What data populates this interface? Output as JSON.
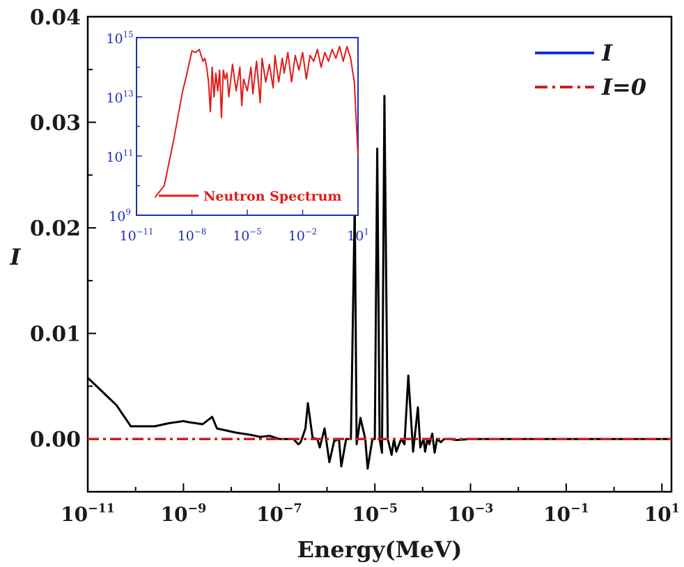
{
  "chart_data": [
    {
      "type": "line",
      "title": "",
      "xlabel": "Energy(MeV)",
      "ylabel": "I",
      "xscale": "log",
      "xlim_exp": [
        -11,
        1.2
      ],
      "ylim": [
        -0.005,
        0.04
      ],
      "x_tick_exponents": [
        -11,
        -9,
        -7,
        -5,
        -3,
        -1,
        1
      ],
      "y_ticks": [
        "0.00",
        "0.01",
        "0.02",
        "0.03",
        "0.04"
      ],
      "y_tick_values": [
        0.0,
        0.01,
        0.02,
        0.03,
        0.04
      ],
      "legend": {
        "position": "top-right",
        "entries": [
          {
            "label": "I",
            "color": "#1a2ee0",
            "style": "solid"
          },
          {
            "label": "I=0",
            "color": "#cc1f1f",
            "style": "dashdot"
          }
        ]
      },
      "series": [
        {
          "name": "I",
          "color": "#000000",
          "x_exp": [
            -11,
            -10.7,
            -10.4,
            -10.1,
            -9.9,
            -9.6,
            -9.3,
            -9.0,
            -8.9,
            -8.6,
            -8.4,
            -8.3,
            -8.1,
            -7.9,
            -7.6,
            -7.4,
            -7.2,
            -7.0,
            -6.8,
            -6.7,
            -6.6,
            -6.55,
            -6.45,
            -6.4,
            -6.3,
            -6.2,
            -6.15,
            -6.05,
            -5.95,
            -5.85,
            -5.75,
            -5.7,
            -5.6,
            -5.5,
            -5.42,
            -5.38,
            -5.3,
            -5.2,
            -5.15,
            -5.05,
            -5.0,
            -4.95,
            -4.9,
            -4.85,
            -4.8,
            -4.73,
            -4.65,
            -4.6,
            -4.55,
            -4.45,
            -4.38,
            -4.3,
            -4.2,
            -4.1,
            -4.05,
            -3.98,
            -3.95,
            -3.9,
            -3.86,
            -3.8,
            -3.75,
            -3.7,
            -3.62,
            -3.55,
            -3.45,
            -3.3,
            -3.0,
            -2.0,
            0.0,
            1.2
          ],
          "values": [
            0.0058,
            0.0045,
            0.0032,
            0.0012,
            0.0012,
            0.0012,
            0.0015,
            0.0017,
            0.0016,
            0.0014,
            0.0021,
            0.001,
            0.0008,
            0.0006,
            0.0004,
            0.0002,
            0.0003,
            0.0,
            0.0,
            0.0,
            -0.0005,
            -0.0003,
            0.001,
            0.0034,
            0.0001,
            0.0,
            -0.0008,
            0.001,
            -0.0022,
            -0.0002,
            0.0,
            -0.0026,
            0.0,
            0.0,
            0.0222,
            -0.0005,
            0.002,
            0.0,
            -0.0028,
            0.0,
            0.0,
            0.0275,
            0.0,
            -0.0013,
            0.0325,
            0.0,
            -0.0015,
            0.0,
            -0.0012,
            0.0,
            -0.0005,
            0.006,
            -0.0012,
            0.003,
            -0.0008,
            0.0,
            -0.0012,
            0.0,
            -0.0005,
            0.0005,
            -0.0013,
            0.0,
            -0.0003,
            0.0,
            0.0,
            -0.0001,
            0.0,
            0.0,
            0.0,
            0.0
          ]
        },
        {
          "name": "I=0",
          "color": "#cc1f1f",
          "x_exp": [
            -11,
            1.2
          ],
          "values": [
            0,
            0
          ]
        }
      ]
    },
    {
      "type": "line",
      "title": "",
      "legend": {
        "position": "bottom-right",
        "entries": [
          {
            "label": "Neutron Spectrum",
            "color": "#e01b1b"
          }
        ]
      },
      "xscale": "log",
      "yscale": "log",
      "xlim_exp": [
        -11,
        1
      ],
      "ylim_exp": [
        9,
        15
      ],
      "x_tick_exponents": [
        -11,
        -8,
        -5,
        -2,
        1
      ],
      "y_tick_exponents": [
        9,
        11,
        13,
        15
      ],
      "series": [
        {
          "name": "Neutron Spectrum",
          "color": "#e01b1b",
          "x_exp": [
            -10.0,
            -9.5,
            -9.0,
            -8.5,
            -8.3,
            -8.0,
            -7.8,
            -7.6,
            -7.4,
            -7.3,
            -7.2,
            -7.1,
            -7.0,
            -6.9,
            -6.8,
            -6.7,
            -6.6,
            -6.5,
            -6.4,
            -6.3,
            -6.2,
            -6.1,
            -6.0,
            -5.8,
            -5.6,
            -5.4,
            -5.3,
            -5.2,
            -5.0,
            -4.8,
            -4.7,
            -4.5,
            -4.3,
            -4.2,
            -4.0,
            -3.8,
            -3.6,
            -3.5,
            -3.3,
            -3.1,
            -3.0,
            -2.8,
            -2.6,
            -2.4,
            -2.2,
            -2.0,
            -1.8,
            -1.6,
            -1.4,
            -1.2,
            -1.0,
            -0.8,
            -0.6,
            -0.4,
            -0.2,
            0.0,
            0.2,
            0.4,
            0.6,
            0.8,
            1.0
          ],
          "values_exp": [
            9.6,
            10.0,
            11.5,
            13.2,
            13.7,
            14.55,
            14.5,
            14.6,
            14.2,
            14.3,
            14.0,
            13.5,
            12.5,
            14.0,
            13.0,
            13.8,
            13.2,
            13.9,
            12.3,
            13.9,
            13.6,
            13.8,
            13.0,
            14.1,
            13.2,
            14.0,
            12.7,
            13.6,
            13.2,
            14.0,
            13.1,
            14.2,
            12.8,
            14.3,
            13.5,
            14.1,
            13.3,
            14.4,
            13.5,
            14.3,
            13.8,
            14.5,
            13.5,
            14.4,
            13.9,
            14.5,
            13.6,
            14.4,
            14.2,
            14.6,
            14.0,
            14.5,
            14.2,
            14.6,
            14.3,
            14.7,
            14.2,
            14.7,
            14.3,
            13.5,
            11.0
          ]
        }
      ]
    }
  ]
}
